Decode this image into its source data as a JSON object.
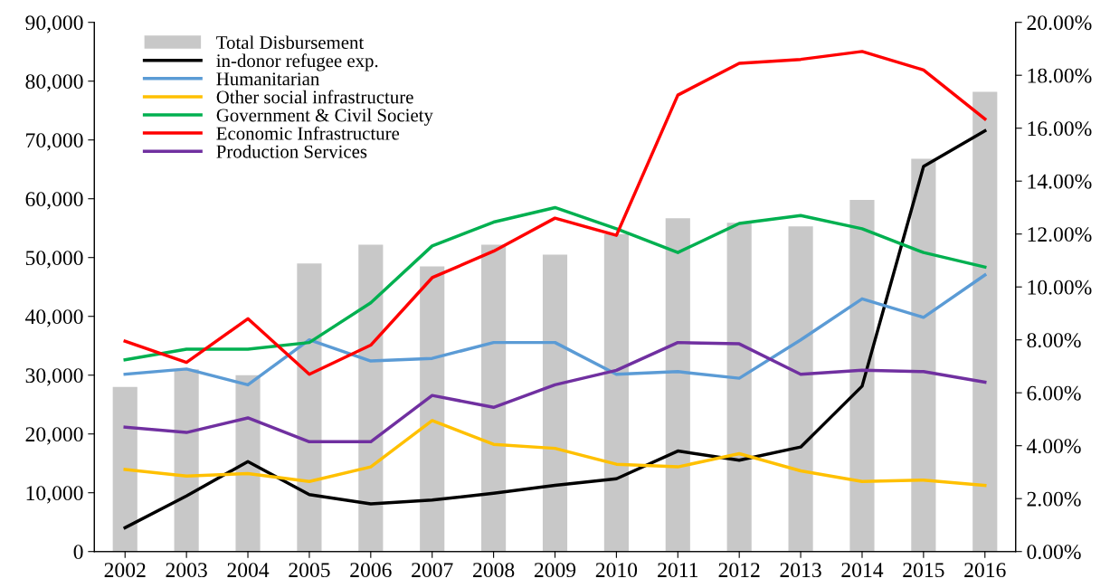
{
  "chart_data": {
    "type": "bar",
    "categories": [
      "2002",
      "2003",
      "2004",
      "2005",
      "2006",
      "2007",
      "2008",
      "2009",
      "2010",
      "2011",
      "2012",
      "2013",
      "2014",
      "2015",
      "2016"
    ],
    "series": [
      {
        "name": "Total Disbursement",
        "color": "#c8c8c8",
        "values": [
          28000,
          31000,
          30000,
          49000,
          52200,
          48500,
          52200,
          50500,
          54000,
          56700,
          55900,
          55300,
          59800,
          66800,
          78200
        ]
      },
      {
        "name": "in-donor refugee exp.",
        "type": "line",
        "axis": "y2",
        "color": "#000000",
        "values": [
          0.9,
          2.1,
          3.4,
          2.15,
          1.8,
          1.95,
          2.2,
          2.5,
          2.75,
          3.8,
          3.45,
          3.95,
          6.25,
          14.55,
          15.9
        ]
      },
      {
        "name": "Humanitarian",
        "type": "line",
        "axis": "y2",
        "color": "#5b9bd5",
        "values": [
          6.7,
          6.9,
          6.3,
          8.0,
          7.2,
          7.3,
          7.9,
          7.9,
          6.7,
          6.8,
          6.55,
          8.0,
          9.55,
          8.85,
          10.45
        ]
      },
      {
        "name": "Other social infrastructure",
        "type": "line",
        "axis": "y2",
        "color": "#ffc000",
        "values": [
          3.1,
          2.85,
          2.95,
          2.65,
          3.2,
          4.95,
          4.05,
          3.9,
          3.3,
          3.2,
          3.7,
          3.05,
          2.65,
          2.7,
          2.5
        ]
      },
      {
        "name": "Government & Civil Society",
        "type": "line",
        "axis": "y2",
        "color": "#00b050",
        "values": [
          7.25,
          7.65,
          7.65,
          7.9,
          9.4,
          11.55,
          12.45,
          13.0,
          12.2,
          11.3,
          12.4,
          12.7,
          12.2,
          11.3,
          10.75
        ]
      },
      {
        "name": "Economic Infrastructure",
        "type": "line",
        "axis": "y2",
        "color": "#ff0000",
        "values": [
          7.95,
          7.15,
          8.8,
          6.7,
          7.8,
          10.35,
          11.35,
          12.6,
          11.95,
          17.25,
          18.45,
          18.6,
          18.9,
          18.2,
          16.35
        ]
      },
      {
        "name": "Production Services",
        "type": "line",
        "axis": "y2",
        "color": "#7030a0",
        "values": [
          4.7,
          4.5,
          5.05,
          4.15,
          4.15,
          5.9,
          5.45,
          6.3,
          6.85,
          7.9,
          7.85,
          6.7,
          6.85,
          6.8,
          6.4
        ]
      }
    ],
    "ylim": [
      0,
      90000
    ],
    "yticks": [
      0,
      {
        "value": 10000,
        "label": "10,000"
      },
      {
        "value": 20000,
        "label": "20,000"
      },
      {
        "value": 30000,
        "label": "30,000"
      },
      {
        "value": 40000,
        "label": "40,000"
      },
      {
        "value": 50000,
        "label": "50,000"
      },
      {
        "value": 60000,
        "label": "60,000"
      },
      {
        "value": 70000,
        "label": "70,000"
      },
      {
        "value": 80000,
        "label": "80,000"
      },
      {
        "value": 90000,
        "label": "90,000"
      }
    ],
    "y2lim": [
      0,
      20
    ],
    "y2ticks": [
      {
        "value": 0,
        "label": "0.00%"
      },
      {
        "value": 2,
        "label": "2.00%"
      },
      {
        "value": 4,
        "label": "4.00%"
      },
      {
        "value": 6,
        "label": "6.00%"
      },
      {
        "value": 8,
        "label": "8.00%"
      },
      {
        "value": 10,
        "label": "10.00%"
      },
      {
        "value": 12,
        "label": "12.00%"
      },
      {
        "value": 14,
        "label": "14.00%"
      },
      {
        "value": 16,
        "label": "16.00%"
      },
      {
        "value": 18,
        "label": "18.00%"
      },
      {
        "value": 20,
        "label": "20.00%"
      }
    ],
    "legend": "top left",
    "grid": false,
    "marker": "none",
    "line_style": "solid"
  }
}
